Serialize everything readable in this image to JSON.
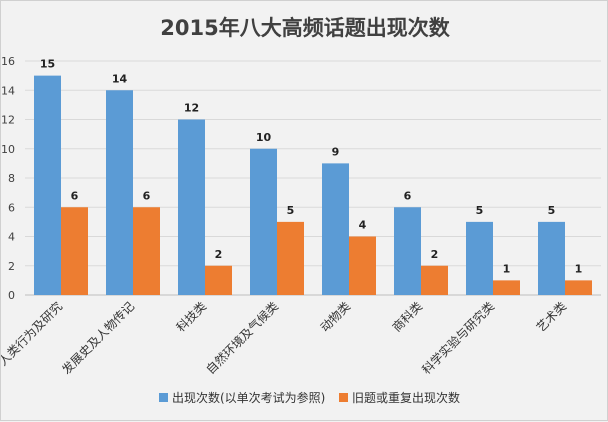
{
  "chart_data": {
    "type": "bar",
    "title": "2015年八大高频话题出现次数",
    "categories": [
      "人类行为及研究",
      "发展史及人物传记",
      "科技类",
      "自然环境及气候类",
      "动物类",
      "商科类",
      "科学实验与研究类",
      "艺术类"
    ],
    "series": [
      {
        "name": "出现次数(以单次考试为参照)",
        "values": [
          15,
          14,
          12,
          10,
          9,
          6,
          5,
          5
        ],
        "color": "#5b9bd5"
      },
      {
        "name": "旧题或重复出现次数",
        "values": [
          6,
          6,
          2,
          5,
          4,
          2,
          1,
          1
        ],
        "color": "#ed7d31"
      }
    ],
    "yticks": [
      0,
      2,
      4,
      6,
      8,
      10,
      12,
      14,
      16
    ],
    "ylim": [
      0,
      16
    ],
    "grid": true,
    "legend_position": "bottom"
  }
}
